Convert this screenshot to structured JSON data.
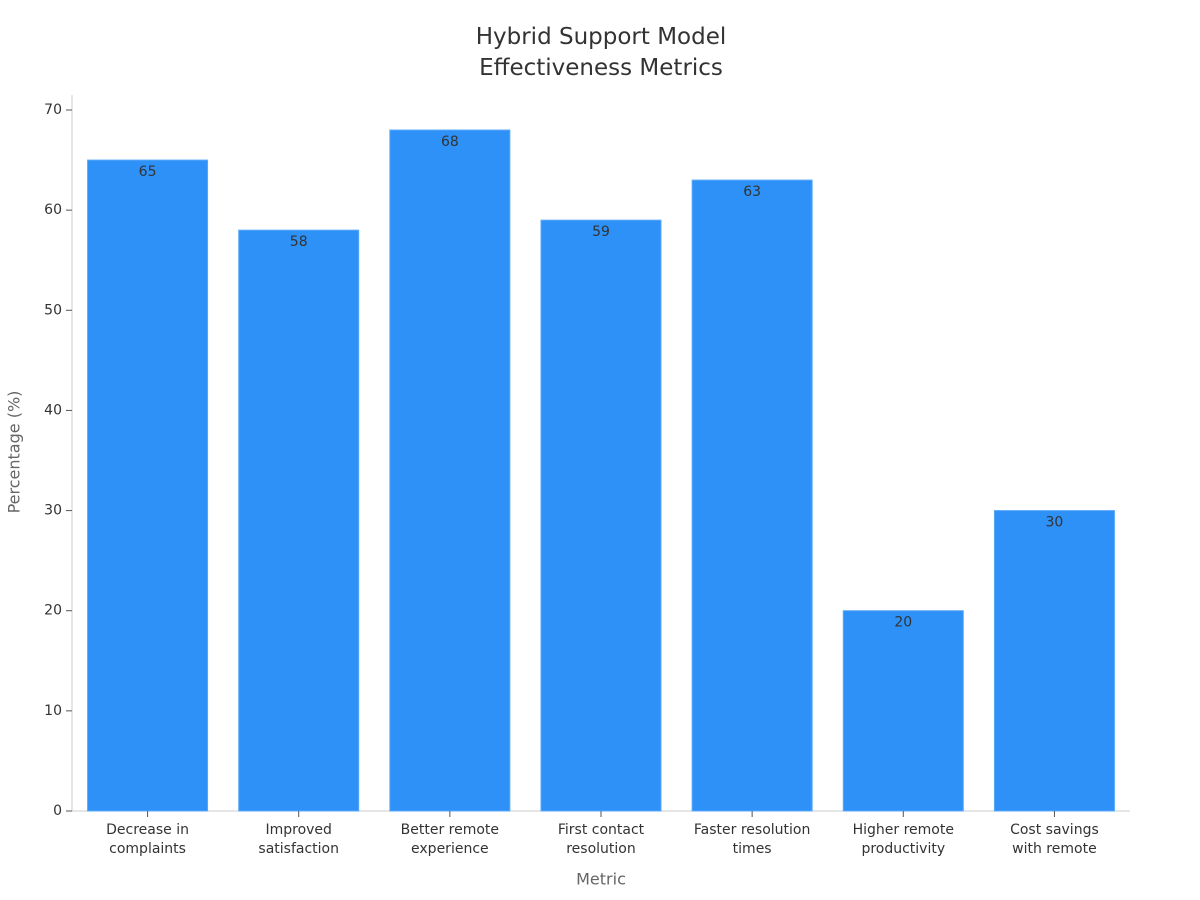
{
  "chart_data": {
    "type": "bar",
    "title": "Hybrid Support Model Effectiveness Metrics",
    "x_label": "Metric",
    "y_label": "Percentage (%)",
    "categories": [
      "Decrease in complaints",
      "Improved satisfaction",
      "Better remote experience",
      "First contact resolution",
      "Faster resolution times",
      "Higher remote productivity",
      "Cost savings with remote"
    ],
    "values": [
      65,
      58,
      68,
      59,
      63,
      20,
      30
    ],
    "color": "#2d91f7",
    "ylim": [
      0,
      70
    ],
    "yticks": [
      0,
      10,
      20,
      30,
      40,
      50,
      60,
      70
    ],
    "grid": false
  }
}
